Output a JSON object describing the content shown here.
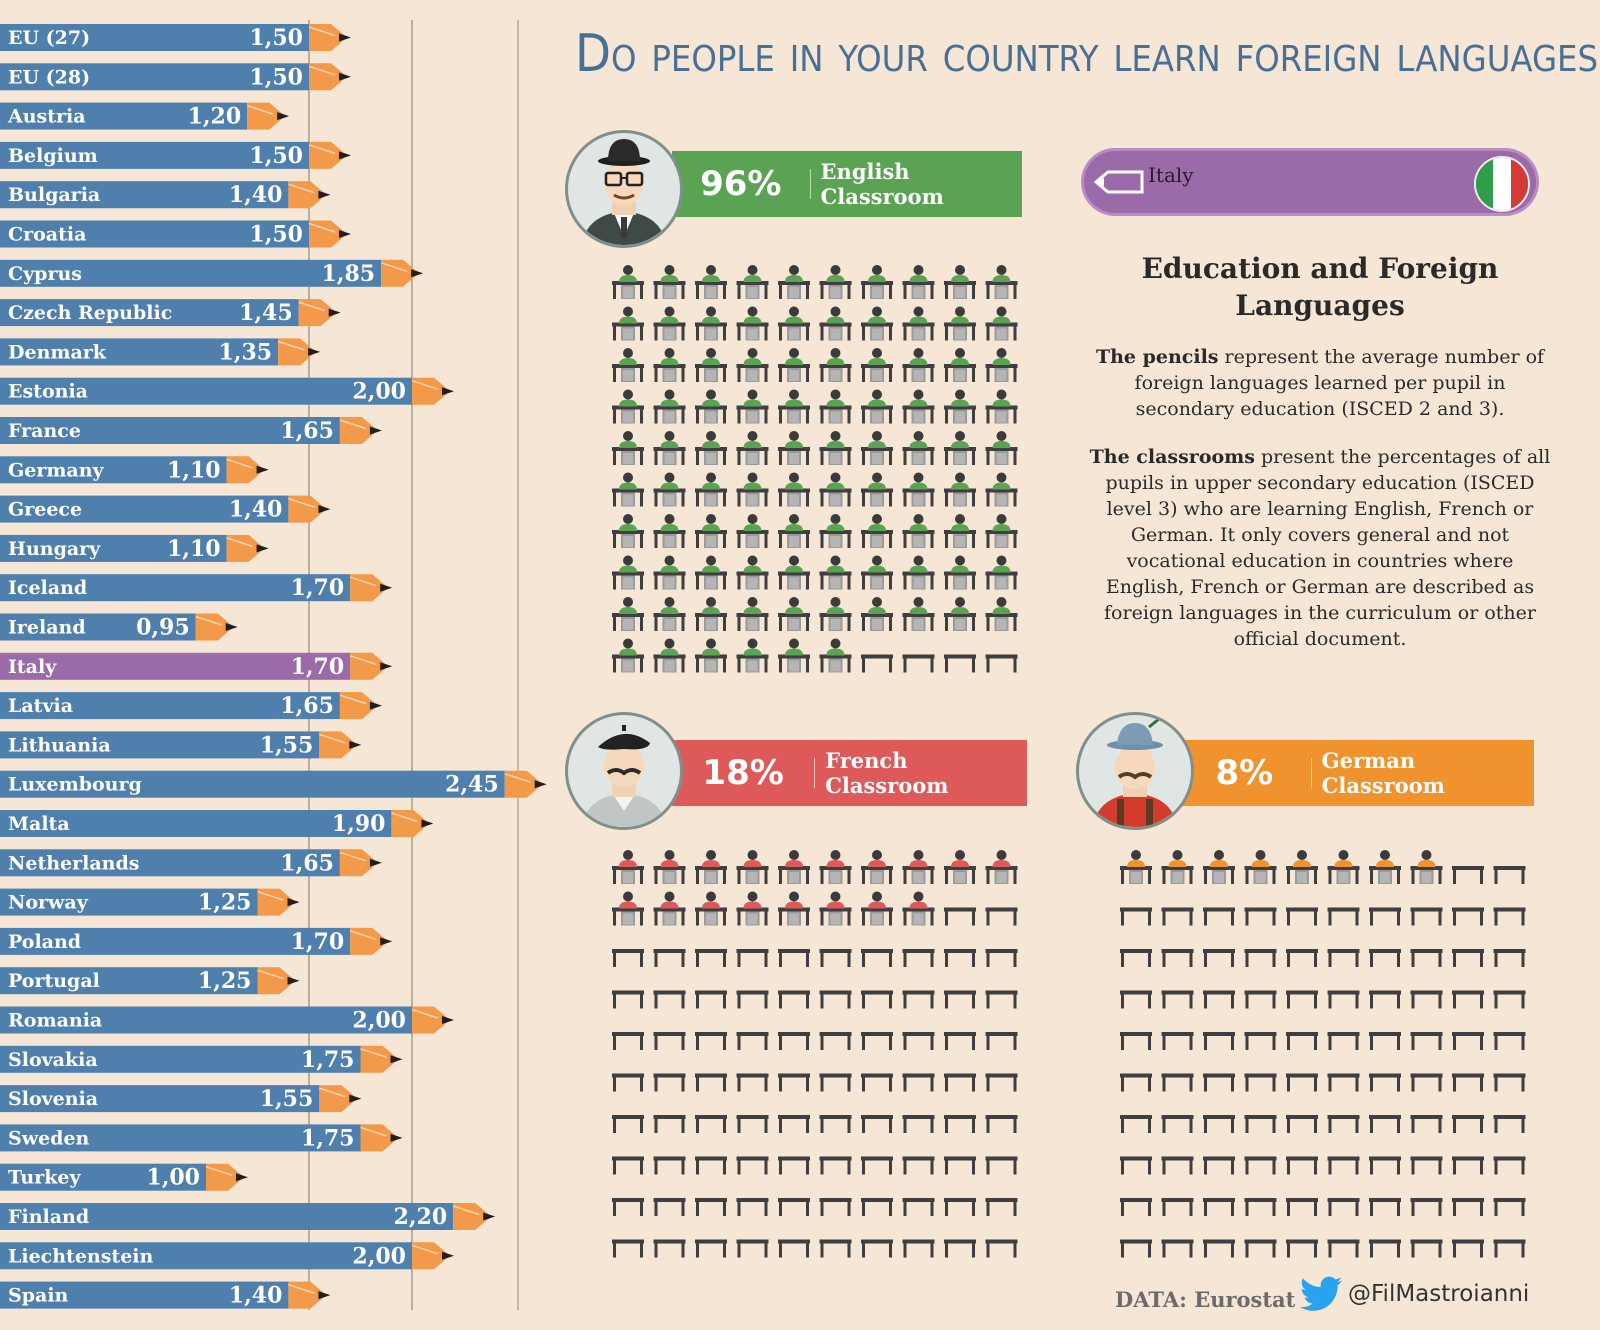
{
  "title": "Do people in your country learn foreign languages?",
  "chart_data": {
    "type": "bar",
    "orientation": "horizontal",
    "title": "Average number of foreign languages learned per pupil",
    "categories": [
      "EU (27)",
      "EU (28)",
      "Austria",
      "Belgium",
      "Bulgaria",
      "Croatia",
      "Cyprus",
      "Czech Republic",
      "Denmark",
      "Estonia",
      "France",
      "Germany",
      "Greece",
      "Hungary",
      "Iceland",
      "Ireland",
      "Italy",
      "Latvia",
      "Lithuania",
      "Luxembourg",
      "Malta",
      "Netherlands",
      "Norway",
      "Poland",
      "Portugal",
      "Romania",
      "Slovakia",
      "Slovenia",
      "Sweden",
      "Turkey",
      "Finland",
      "Liechtenstein",
      "Spain"
    ],
    "values": [
      1.5,
      1.5,
      1.2,
      1.5,
      1.4,
      1.5,
      1.85,
      1.45,
      1.35,
      2.0,
      1.65,
      1.1,
      1.4,
      1.1,
      1.7,
      0.95,
      1.7,
      1.65,
      1.55,
      2.45,
      1.9,
      1.65,
      1.25,
      1.7,
      1.25,
      2.0,
      1.75,
      1.55,
      1.75,
      1.0,
      2.2,
      2.0,
      1.4
    ],
    "value_labels": [
      "1,50",
      "1,50",
      "1,20",
      "1,50",
      "1,40",
      "1,50",
      "1,85",
      "1,45",
      "1,35",
      "2,00",
      "1,65",
      "1,10",
      "1,40",
      "1,10",
      "1,70",
      "0,95",
      "1,70",
      "1,65",
      "1,55",
      "2,45",
      "1,90",
      "1,65",
      "1,25",
      "1,70",
      "1,25",
      "2,00",
      "1,75",
      "1,55",
      "1,75",
      "1,00",
      "2,20",
      "2,00",
      "1,40"
    ],
    "highlight": "Italy",
    "xlim": [
      0,
      2.5
    ],
    "gridlines": [
      1.5,
      2.0
    ],
    "bar_color": "#4f7fad",
    "highlight_color": "#9b6aa8",
    "pencil_color": "#f29a4a"
  },
  "selector": {
    "value": "Italy"
  },
  "classrooms": [
    {
      "id": "english",
      "percent": 96,
      "percent_label": "96%",
      "label": "English Classroom",
      "color": "#5aa352"
    },
    {
      "id": "french",
      "percent": 18,
      "percent_label": "18%",
      "label": "French Classroom",
      "color": "#de5a5a"
    },
    {
      "id": "german",
      "percent": 8,
      "percent_label": "8%",
      "label": "German Classroom",
      "color": "#f0922e"
    }
  ],
  "legend": {
    "heading": "Education and Foreign Languages",
    "p1_bold": "The pencils",
    "p1_rest": " represent the average number of foreign languages learned per pupil in secondary education (ISCED 2 and 3).",
    "p2_bold": "The classrooms",
    "p2_rest": " present the percentages of all pupils in upper secondary education (ISCED level 3) who are learning English, French or German. It only covers general and not vocational education in countries where English, French or German are described as foreign languages in the curriculum or other official document."
  },
  "footer": {
    "source": "DATA: Eurostat",
    "handle": "@FilMastroianni"
  }
}
